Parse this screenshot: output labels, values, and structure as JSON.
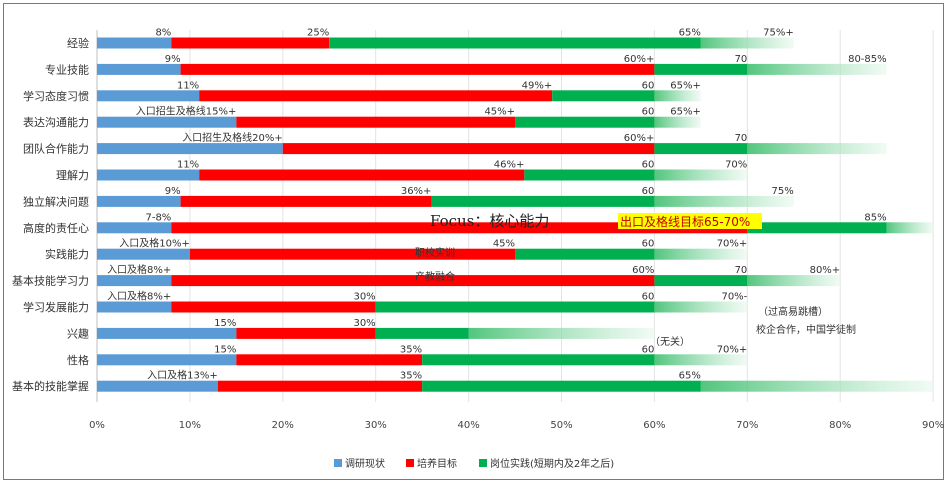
{
  "chart_data": {
    "type": "bar",
    "orientation": "horizontal",
    "xlim": [
      0,
      90
    ],
    "x_ticks": [
      "0%",
      "10%",
      "20%",
      "30%",
      "40%",
      "50%",
      "60%",
      "70%",
      "80%",
      "90%"
    ],
    "grid": "vertical",
    "categories": [
      "经验",
      "专业技能",
      "学习态度习惯",
      "表达沟通能力",
      "团队合作能力",
      "理解力",
      "独立解决问题",
      "高度的责任心",
      "实践能力",
      "基本技能学习力",
      "学习发展能力",
      "兴趣",
      "性格",
      "基本的技能掌握"
    ],
    "series": [
      {
        "name": "调研现状",
        "color": "#5b9bd5",
        "values": [
          8,
          9,
          11,
          15,
          20,
          11,
          9,
          8,
          10,
          8,
          8,
          15,
          15,
          13
        ]
      },
      {
        "name": "培养目标",
        "color": "#ff0000",
        "values": [
          25,
          60,
          49,
          45,
          60,
          46,
          36,
          70,
          45,
          60,
          30,
          30,
          35,
          35
        ]
      },
      {
        "name": "岗位实践(短期内及2年之后)",
        "color": "#00b050",
        "values": [
          65,
          70,
          60,
          60,
          70,
          60,
          60,
          85,
          60,
          70,
          60,
          40,
          60,
          65
        ]
      }
    ],
    "gradient_tail_ends": [
      75,
      85,
      65,
      65,
      85,
      70,
      75,
      90,
      70,
      80,
      70,
      60,
      70,
      90
    ],
    "value_labels": {
      "status": [
        "8%",
        "9%",
        "11%",
        "入口招生及格线15%+",
        "入口招生及格线20%+",
        "11%",
        "9%",
        "7-8%",
        "入口及格10%+",
        "入口及格8%+",
        "入口及格8%+",
        "15%",
        "15%",
        "入口及格13%+"
      ],
      "target": [
        "25%",
        "60%+",
        "49%+",
        "45%+",
        "60%+",
        "46%+",
        "36%+",
        "",
        "45%",
        "60%",
        "30%",
        "30%",
        "35%",
        "35%"
      ],
      "practice": [
        "65%",
        "70",
        "60",
        "60",
        "70",
        "60",
        "60",
        "85%",
        "60",
        "70",
        "60",
        "",
        "60",
        "65%"
      ],
      "tail": [
        "75%+",
        "80-85%",
        "65%+",
        "65%+",
        "",
        "70%",
        "75%",
        "",
        "70%+",
        "80%+",
        "70%-",
        "",
        "70%+",
        ""
      ]
    },
    "annotations": {
      "focus": "Focus：核心能力",
      "exit_target": "出口及格线目标65-70%",
      "school_training": "职校实训",
      "industry_fusion": "产教融合",
      "no_need": "（无关）",
      "dip_note": "（过高易跳槽）",
      "coop_note": "校企合作，中国学徒制"
    },
    "legend_placement": "bottom-center"
  }
}
